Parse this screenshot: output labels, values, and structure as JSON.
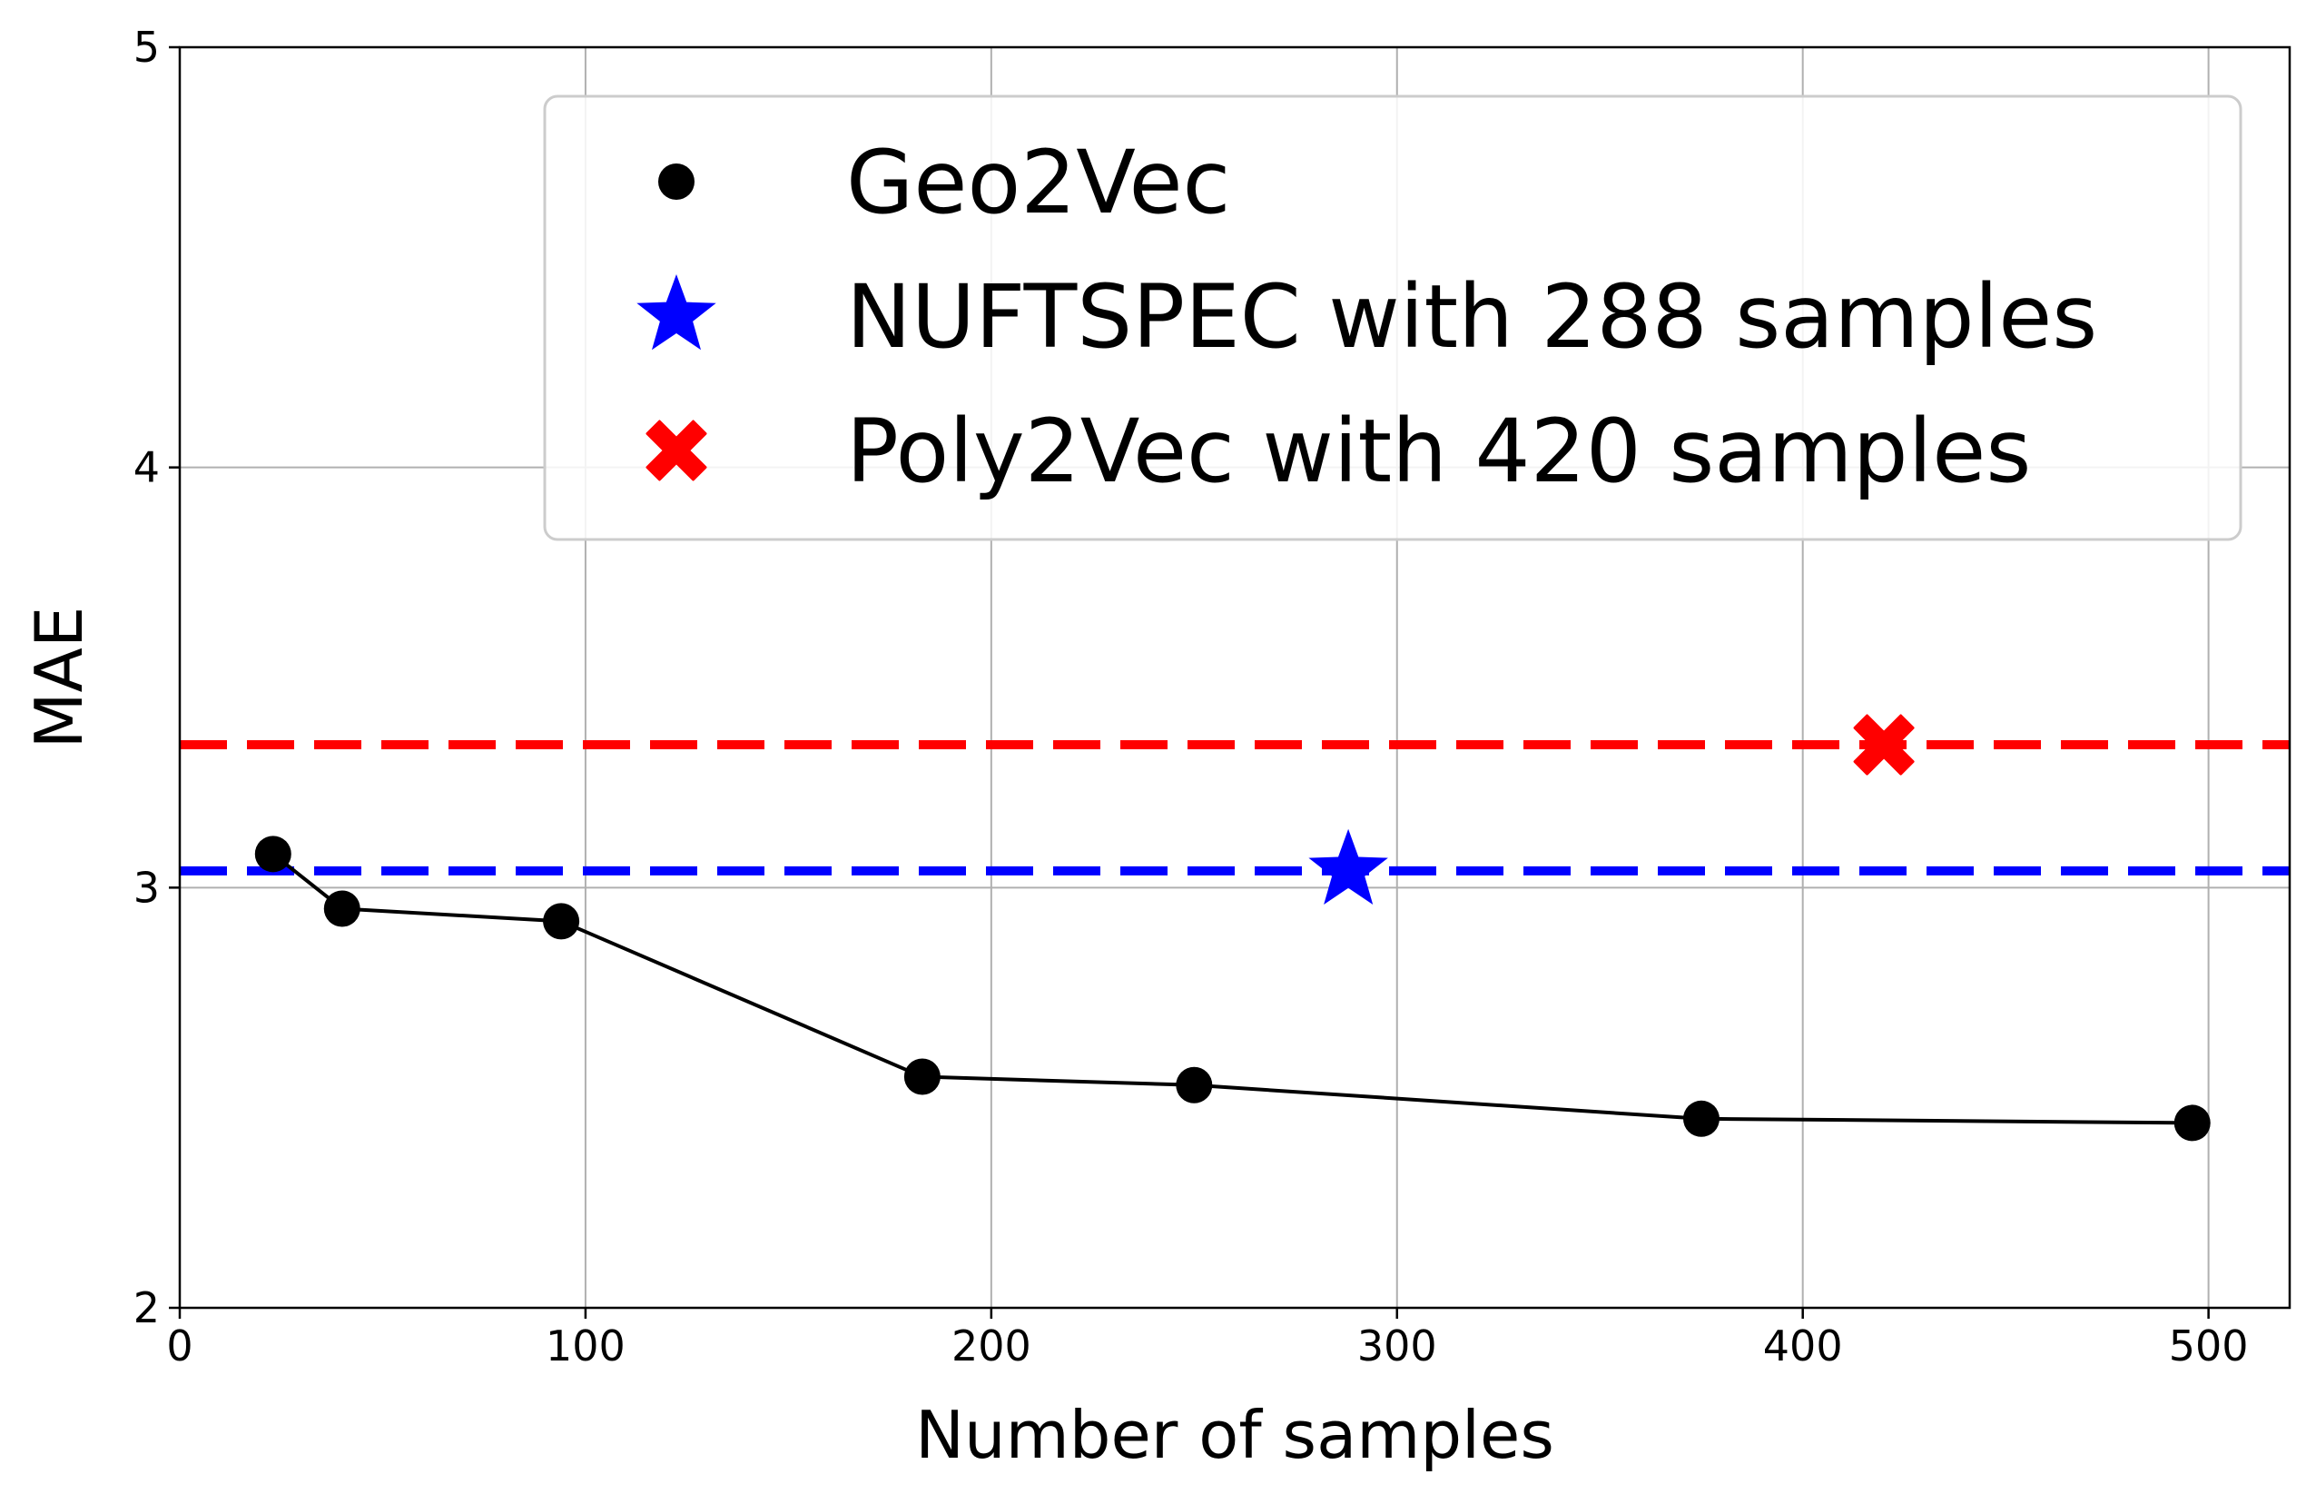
{
  "chart_data": {
    "type": "line",
    "title": "",
    "xlabel": "Number of samples",
    "ylabel": "MAE",
    "xlim": [
      0,
      520
    ],
    "ylim": [
      2,
      5
    ],
    "x_ticks": [
      "0",
      "100",
      "200",
      "300",
      "400",
      "500"
    ],
    "y_ticks": [
      "2",
      "3",
      "4",
      "5"
    ],
    "x_tick_values": [
      0,
      100,
      200,
      300,
      400,
      500
    ],
    "y_tick_values": [
      2,
      3,
      4,
      5
    ],
    "grid": true,
    "legend_position": "top-right",
    "series": [
      {
        "name": "Geo2Vec",
        "marker": "circle",
        "color": "#000000",
        "x": [
          23,
          40,
          94,
          183,
          250,
          375,
          496
        ],
        "y": [
          3.08,
          2.95,
          2.92,
          2.55,
          2.53,
          2.45,
          2.44
        ]
      }
    ],
    "reference_points": [
      {
        "name": "NUFTSPEC with 288 samples",
        "marker": "star",
        "color": "#0000ff",
        "x": 288,
        "y": 3.04
      },
      {
        "name": "Poly2Vec with 420 samples",
        "marker": "x",
        "color": "#ff0000",
        "x": 420,
        "y": 3.34
      }
    ],
    "reference_lines": [
      {
        "color": "#0000ff",
        "y": 3.04,
        "style": "dashed"
      },
      {
        "color": "#ff0000",
        "y": 3.34,
        "style": "dashed"
      }
    ]
  }
}
